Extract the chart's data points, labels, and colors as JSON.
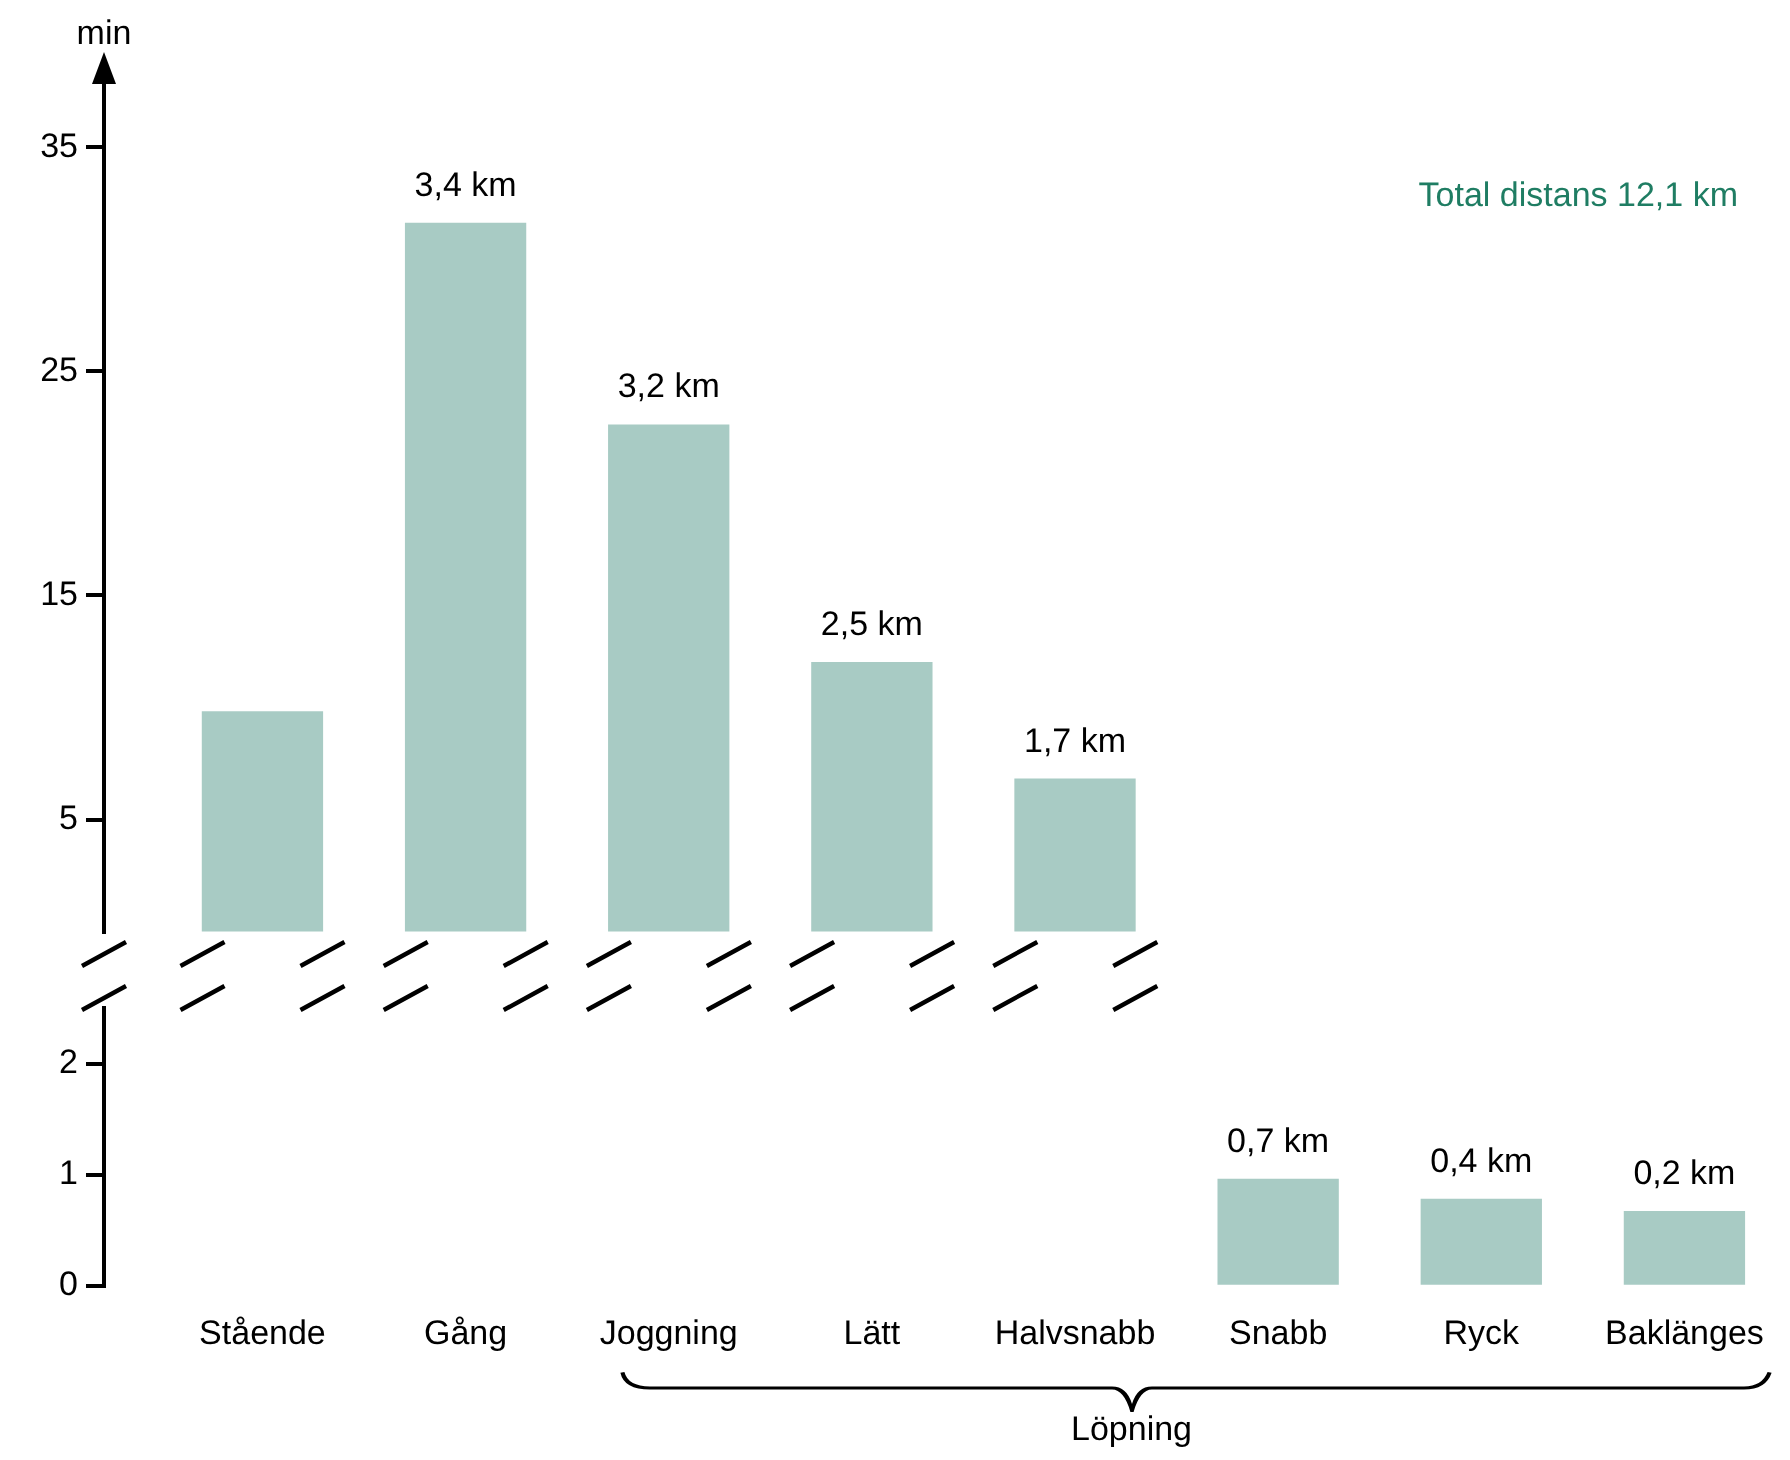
{
  "chart_data": [
    {
      "type": "bar",
      "ylabel": "min",
      "categories": [
        "Stående",
        "Gång",
        "Joggning",
        "Lätt",
        "Halvsnabb",
        "Snabb",
        "Ryck",
        "Baklänges"
      ],
      "values": [
        9.8,
        31.6,
        22.6,
        12.0,
        6.8,
        null,
        null,
        null
      ],
      "color": "#a8cbc4",
      "ylim": [
        0,
        38
      ],
      "yticks": [
        5,
        15,
        25,
        35
      ],
      "tick_labels": "y",
      "grid": false,
      "legend": false,
      "annotations": [
        {
          "text": "3,4 km",
          "x": "Gång",
          "y": 31.6
        },
        {
          "text": "3,2 km",
          "x": "Joggning",
          "y": 22.6
        },
        {
          "text": "2,5 km",
          "x": "Lätt",
          "y": 12.0
        },
        {
          "text": "1,7 km",
          "x": "Halvsnabb",
          "y": 6.8
        },
        "Total distans 12,1 km"
      ]
    },
    {
      "type": "bar",
      "categories": [
        "Stående",
        "Gång",
        "Joggning",
        "Lätt",
        "Halvsnabb",
        "Snabb",
        "Ryck",
        "Baklänges"
      ],
      "values": [
        null,
        null,
        null,
        null,
        null,
        0.96,
        0.78,
        0.67
      ],
      "color": "#a8cbc4",
      "ylim": [
        0,
        2.5
      ],
      "yticks": [
        0,
        1,
        2
      ],
      "grid": false,
      "legend": false,
      "annotations": [
        {
          "text": "0,7 km",
          "x": "Snabb",
          "y": 0.96
        },
        {
          "text": "0,4 km",
          "x": "Ryck",
          "y": 0.78
        },
        {
          "text": "0,2 km",
          "x": "Baklänges",
          "y": 0.67
        },
        "Löpning"
      ]
    }
  ]
}
